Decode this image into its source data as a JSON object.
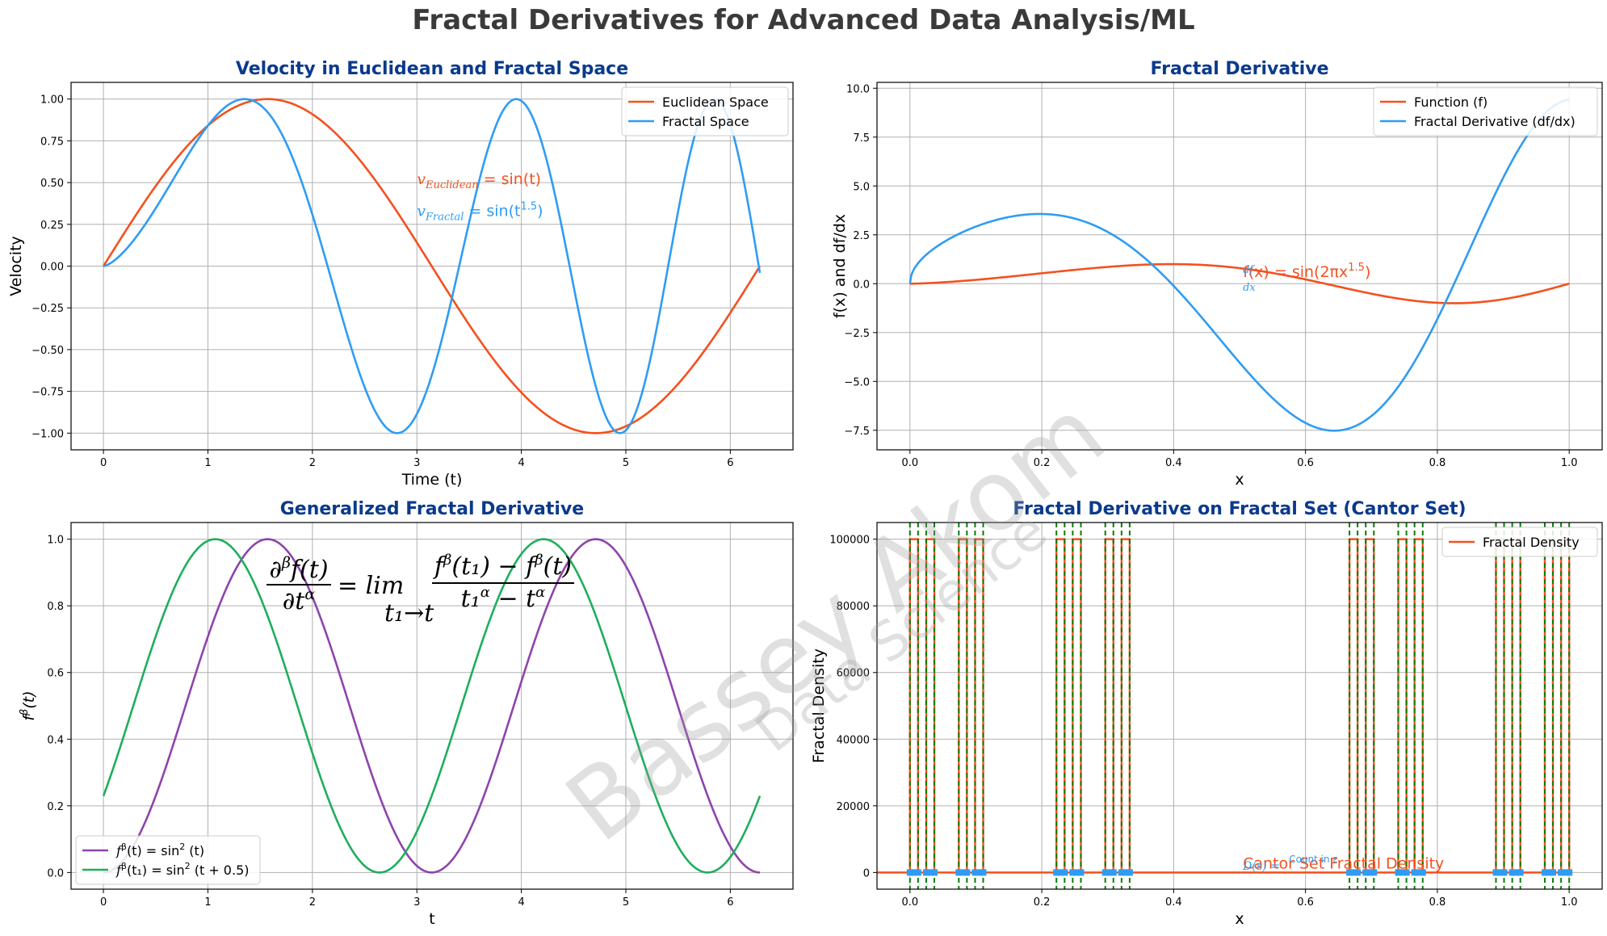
{
  "figure": {
    "suptitle": "Fractal Derivatives for Advanced Data Analysis/ML",
    "watermark": {
      "main": "Bassey Akom",
      "sub": "Data Science"
    }
  },
  "chart_data": [
    {
      "type": "line",
      "title": "Velocity in Euclidean and Fractal Space",
      "xlabel": "Time (t)",
      "ylabel": "Velocity",
      "xlim": [
        -0.31,
        6.6
      ],
      "ylim": [
        -1.1,
        1.1
      ],
      "xticks": [
        0,
        1,
        2,
        3,
        4,
        5,
        6
      ],
      "xtick_labels": [
        "0",
        "1",
        "2",
        "3",
        "4",
        "5",
        "6"
      ],
      "yticks": [
        -1.0,
        -0.75,
        -0.5,
        -0.25,
        0.0,
        0.25,
        0.5,
        0.75,
        1.0
      ],
      "ytick_labels": [
        "−1.00",
        "−0.75",
        "−0.50",
        "−0.25",
        "0.00",
        "0.25",
        "0.50",
        "0.75",
        "1.00"
      ],
      "grid": true,
      "legend_position": "upper-right",
      "series": [
        {
          "name": "Euclidean Space",
          "color": "#f4511e",
          "formula": "sin(t)",
          "x_range": [
            0,
            6.283
          ]
        },
        {
          "name": "Fractal Space",
          "color": "#2f9cf3",
          "formula": "sin(t^1.5)",
          "x_range": [
            0,
            6.283
          ]
        }
      ],
      "annotations": [
        {
          "base": "v",
          "sub": "Euclidean",
          "rhs": " = sin(t)",
          "color": "#f4511e"
        },
        {
          "base": "v",
          "sub": "Fractal",
          "rhs": " = sin(t",
          "sup": "1.5",
          "tail": ")",
          "color": "#2f9cf3"
        }
      ]
    },
    {
      "type": "line",
      "title": "Fractal Derivative",
      "xlabel": "x",
      "ylabel": "f(x) and df/dx",
      "xlim": [
        -0.05,
        1.05
      ],
      "ylim": [
        -8.5,
        10.3
      ],
      "xticks": [
        0,
        0.2,
        0.4,
        0.6,
        0.8,
        1.0
      ],
      "xtick_labels": [
        "0.0",
        "0.2",
        "0.4",
        "0.6",
        "0.8",
        "1.0"
      ],
      "yticks": [
        -7.5,
        -5,
        -2.5,
        0,
        2.5,
        5,
        7.5,
        10
      ],
      "ytick_labels": [
        "−7.5",
        "−5.0",
        "−2.5",
        "0.0",
        "2.5",
        "5.0",
        "7.5",
        "10.0"
      ],
      "grid": true,
      "legend_position": "upper-right",
      "series": [
        {
          "name": "Function (f)",
          "color": "#f4511e",
          "formula": "sin(2*pi*x^1.5)",
          "x_range": [
            0,
            1
          ]
        },
        {
          "name": "Fractal Derivative (df/dx)",
          "color": "#2f9cf3",
          "formula": "d/dx sin(2*pi*x^1.5)",
          "x_range": [
            0,
            1
          ]
        }
      ],
      "annotations": [
        {
          "lhs": "f(x) = sin(2πx",
          "sup": "1.5",
          "tail": ")",
          "color": "#f4511e"
        },
        {
          "frac_num": "df",
          "frac_den": "dx",
          "color": "#2f9cf3"
        }
      ]
    },
    {
      "type": "line",
      "title": "Generalized Fractal Derivative",
      "xlabel": "t",
      "ylabel": "f^β(t)",
      "xlim": [
        -0.31,
        6.6
      ],
      "ylim": [
        -0.05,
        1.05
      ],
      "xticks": [
        0,
        1,
        2,
        3,
        4,
        5,
        6
      ],
      "xtick_labels": [
        "0",
        "1",
        "2",
        "3",
        "4",
        "5",
        "6"
      ],
      "yticks": [
        0,
        0.2,
        0.4,
        0.6,
        0.8,
        1.0
      ],
      "ytick_labels": [
        "0.0",
        "0.2",
        "0.4",
        "0.6",
        "0.8",
        "1.0"
      ],
      "grid": true,
      "legend_position": "lower-left",
      "series": [
        {
          "name": "f^β(t) = sin²(t)",
          "legend_base": "f",
          "legend_sup": "β",
          "legend_arg": "(t) = sin",
          "legend_sup2": "2",
          "legend_tail": " (t)",
          "color": "#8e44ad",
          "formula": "sin(t)^2",
          "x_range": [
            0,
            6.283
          ]
        },
        {
          "name": "f^β(t1) = sin²(t + 0.5)",
          "legend_base": "f",
          "legend_sup": "β",
          "legend_arg": "(t₁) = sin",
          "legend_sup2": "2",
          "legend_tail": " (t + 0.5)",
          "color": "#1fae5c",
          "formula": "sin(t+0.5)^2",
          "x_range": [
            0,
            6.283
          ]
        }
      ],
      "formula_text": {
        "num_left": "∂",
        "num_left_sup": "β",
        "num_left_rest": "f(t)",
        "den_left": "∂t",
        "den_left_sup": "α",
        "eq": "= lim",
        "lim_sub": "t₁→t",
        "num_right": "f",
        "num_right_sup": "β",
        "num_right_mid": "(t₁) − f",
        "num_right_sup2": "β",
        "num_right_tail": "(t)",
        "den_right": "t₁",
        "den_right_sup": "α",
        "den_right_mid": " − t",
        "den_right_sup2": "α"
      }
    },
    {
      "type": "line",
      "title": "Fractal Derivative on Fractal Set (Cantor Set)",
      "xlabel": "x",
      "ylabel": "Fractal Density",
      "xlim": [
        -0.05,
        1.05
      ],
      "ylim": [
        -5000,
        105000
      ],
      "xticks": [
        0,
        0.2,
        0.4,
        0.6,
        0.8,
        1.0
      ],
      "xtick_labels": [
        "0.0",
        "0.2",
        "0.4",
        "0.6",
        "0.8",
        "1.0"
      ],
      "yticks": [
        0,
        20000,
        40000,
        60000,
        80000,
        100000
      ],
      "ytick_labels": [
        "0",
        "20000",
        "40000",
        "60000",
        "80000",
        "100000"
      ],
      "grid": true,
      "legend_position": "upper-right",
      "series": [
        {
          "name": "Fractal Density",
          "color": "#f4511e",
          "peak_value": 100000
        }
      ],
      "cantor_level": 4,
      "cantor_intervals": [
        [
          0.0,
          0.0123
        ],
        [
          0.0247,
          0.037
        ],
        [
          0.0741,
          0.0864
        ],
        [
          0.0988,
          0.1111
        ],
        [
          0.2222,
          0.2346
        ],
        [
          0.2469,
          0.2593
        ],
        [
          0.2963,
          0.3086
        ],
        [
          0.321,
          0.3333
        ],
        [
          0.6667,
          0.679
        ],
        [
          0.6914,
          0.7037
        ],
        [
          0.7407,
          0.7531
        ],
        [
          0.7654,
          0.7778
        ],
        [
          0.8889,
          0.9012
        ],
        [
          0.9136,
          0.9259
        ],
        [
          0.963,
          0.9753
        ],
        [
          0.9877,
          1.0
        ]
      ],
      "marker_color": "#2f9cf3",
      "vline_color": "#0a7d0a",
      "annotations": [
        {
          "text": "Cantor Set Fractal Density",
          "color": "#f4511e"
        },
        {
          "text": "Count in ε",
          "color": "#2f9cf3"
        },
        {
          "text": "D(ε) =",
          "color": "#2f9cf3"
        }
      ]
    }
  ]
}
